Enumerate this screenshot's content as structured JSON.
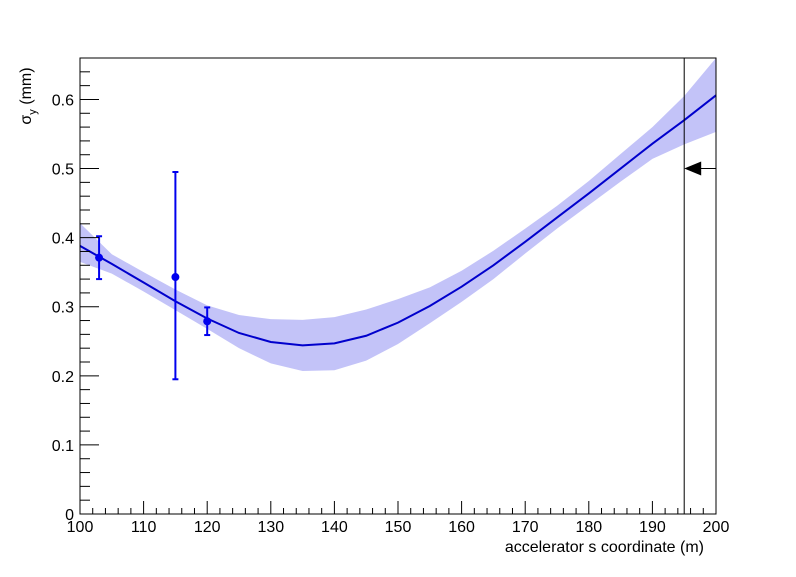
{
  "chart_data": {
    "type": "scatter",
    "xlabel": "accelerator s coordinate (m)",
    "ylabel_symbol": "σ",
    "ylabel_subscript": "y",
    "ylabel_unit": " (mm)",
    "xlim": [
      100,
      200
    ],
    "ylim": [
      0,
      0.66
    ],
    "x_ticks": [
      100,
      110,
      120,
      130,
      140,
      150,
      160,
      170,
      180,
      190,
      200
    ],
    "y_ticks": [
      0,
      0.1,
      0.2,
      0.3,
      0.4,
      0.5,
      0.6
    ],
    "x_tick_labels": [
      "100",
      "110",
      "120",
      "130",
      "140",
      "150",
      "160",
      "170",
      "180",
      "190",
      "200"
    ],
    "y_tick_labels": [
      "0",
      "0.1",
      "0.2",
      "0.3",
      "0.4",
      "0.5",
      "0.6"
    ],
    "grid": false,
    "series": [
      {
        "type": "points_with_error_bars",
        "color": "#0000ee",
        "points": [
          {
            "x": 103,
            "y": 0.371,
            "err_low": 0.34,
            "err_high": 0.402
          },
          {
            "x": 115,
            "y": 0.343,
            "err_low": 0.195,
            "err_high": 0.495
          },
          {
            "x": 120,
            "y": 0.279,
            "err_low": 0.259,
            "err_high": 0.299
          }
        ]
      },
      {
        "type": "fit_line",
        "color": "#0000cc",
        "x": [
          100,
          105,
          110,
          115,
          120,
          125,
          130,
          135,
          140,
          145,
          150,
          155,
          160,
          165,
          170,
          175,
          180,
          185,
          190,
          195,
          200
        ],
        "y": [
          0.388,
          0.362,
          0.335,
          0.308,
          0.283,
          0.262,
          0.249,
          0.244,
          0.247,
          0.258,
          0.277,
          0.301,
          0.329,
          0.36,
          0.394,
          0.429,
          0.464,
          0.5,
          0.536,
          0.57,
          0.606
        ]
      },
      {
        "type": "confidence_band",
        "color": "#c3c3f8",
        "x": [
          100,
          105,
          110,
          115,
          120,
          125,
          130,
          135,
          140,
          145,
          150,
          155,
          160,
          165,
          170,
          175,
          180,
          185,
          190,
          195,
          200
        ],
        "low": [
          0.365,
          0.348,
          0.322,
          0.295,
          0.268,
          0.24,
          0.218,
          0.207,
          0.208,
          0.222,
          0.246,
          0.276,
          0.307,
          0.34,
          0.377,
          0.413,
          0.447,
          0.481,
          0.514,
          0.535,
          0.553
        ],
        "high": [
          0.421,
          0.376,
          0.35,
          0.325,
          0.302,
          0.288,
          0.282,
          0.281,
          0.285,
          0.296,
          0.311,
          0.328,
          0.352,
          0.381,
          0.413,
          0.446,
          0.482,
          0.521,
          0.56,
          0.605,
          0.66
        ]
      }
    ],
    "annotations": [
      {
        "type": "vertical_line",
        "x": 195,
        "color": "#000000"
      },
      {
        "type": "arrow",
        "y": 0.5,
        "x_from": 200,
        "x_to": 195,
        "direction": "left",
        "color": "#000000"
      }
    ]
  }
}
